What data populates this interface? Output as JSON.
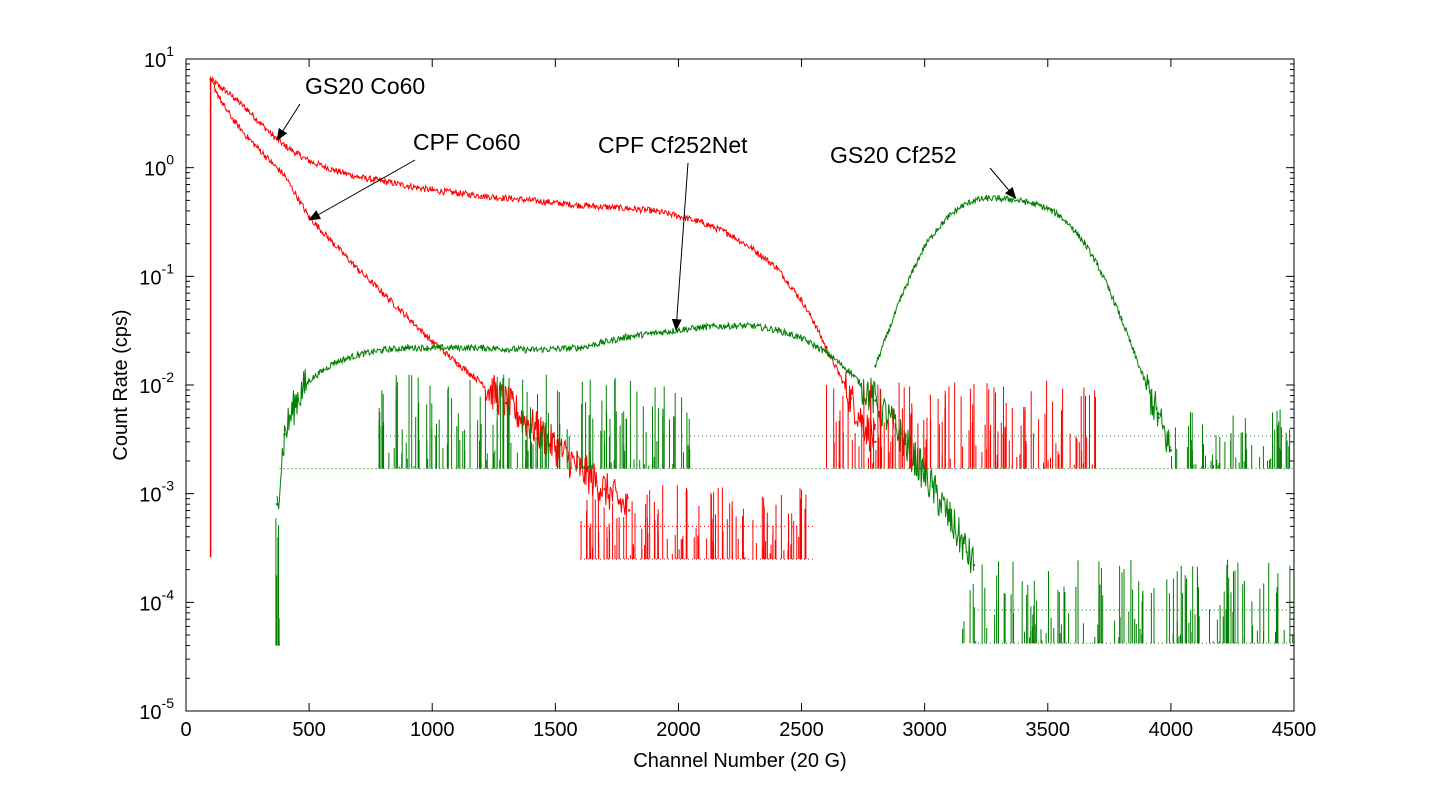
{
  "chart_data": {
    "type": "line",
    "title": "",
    "xlabel": "Channel Number (20 G)",
    "ylabel": "Count Rate (cps)",
    "xlim": [
      0,
      4500
    ],
    "ylim": [
      1e-05,
      10
    ],
    "y_scale": "log",
    "grid": false,
    "legend": "none",
    "x_ticks": [
      "0",
      "500",
      "1000",
      "1500",
      "2000",
      "2500",
      "3000",
      "3500",
      "4000",
      "4500"
    ],
    "y_ticks": [
      {
        "base": "10",
        "exp": "1"
      },
      {
        "base": "10",
        "exp": "0"
      },
      {
        "base": "10",
        "exp": "-1"
      },
      {
        "base": "10",
        "exp": "-2"
      },
      {
        "base": "10",
        "exp": "-3"
      },
      {
        "base": "10",
        "exp": "-4"
      },
      {
        "base": "10",
        "exp": "-5"
      }
    ],
    "series": [
      {
        "name": "GS20 Co60",
        "color": "#ff0000",
        "x": [
          100,
          150,
          200,
          250,
          300,
          350,
          400,
          450,
          500,
          600,
          700,
          800,
          900,
          1000,
          1200,
          1400,
          1600,
          1800,
          1900,
          2000,
          2100,
          2200,
          2300,
          2400,
          2500,
          2550,
          2600,
          2650,
          2700,
          2750,
          2800
        ],
        "y": [
          6.5,
          5.3,
          4.3,
          3.4,
          2.6,
          2.0,
          1.6,
          1.35,
          1.15,
          0.95,
          0.82,
          0.75,
          0.68,
          0.62,
          0.55,
          0.5,
          0.45,
          0.42,
          0.4,
          0.36,
          0.31,
          0.25,
          0.18,
          0.12,
          0.06,
          0.038,
          0.022,
          0.013,
          0.0075,
          0.0045,
          0.003
        ]
      },
      {
        "name": "CPF Co60",
        "color": "#ff0000",
        "x": [
          100,
          150,
          200,
          250,
          300,
          350,
          400,
          500,
          600,
          700,
          800,
          900,
          1000,
          1100,
          1200,
          1300,
          1400,
          1500,
          1600,
          1700,
          1800
        ],
        "y": [
          6.5,
          3.8,
          2.6,
          1.9,
          1.45,
          1.1,
          0.85,
          0.35,
          0.2,
          0.115,
          0.07,
          0.042,
          0.025,
          0.016,
          0.0105,
          0.0068,
          0.0043,
          0.0027,
          0.0017,
          0.0011,
          0.0007
        ]
      },
      {
        "name": "CPF Cf252Net",
        "color": "#008000",
        "x": [
          370,
          400,
          450,
          500,
          600,
          700,
          800,
          900,
          1000,
          1200,
          1400,
          1600,
          1800,
          2000,
          2100,
          2200,
          2300,
          2400,
          2500,
          2600,
          2700,
          2800,
          2900,
          3000,
          3100,
          3200
        ],
        "y": [
          0.0008,
          0.0035,
          0.0075,
          0.011,
          0.016,
          0.019,
          0.021,
          0.022,
          0.022,
          0.022,
          0.021,
          0.022,
          0.028,
          0.032,
          0.034,
          0.035,
          0.035,
          0.032,
          0.027,
          0.02,
          0.013,
          0.0072,
          0.0035,
          0.0015,
          0.0006,
          0.00022
        ]
      },
      {
        "name": "GS20 Cf252",
        "color": "#008000",
        "x": [
          2800,
          2850,
          2900,
          2950,
          3000,
          3050,
          3100,
          3150,
          3200,
          3250,
          3300,
          3350,
          3400,
          3450,
          3500,
          3550,
          3600,
          3650,
          3700,
          3750,
          3800,
          3850,
          3900,
          3950,
          4000
        ],
        "y": [
          0.015,
          0.03,
          0.06,
          0.11,
          0.19,
          0.27,
          0.36,
          0.44,
          0.5,
          0.52,
          0.52,
          0.51,
          0.49,
          0.46,
          0.42,
          0.36,
          0.28,
          0.2,
          0.13,
          0.075,
          0.04,
          0.02,
          0.01,
          0.005,
          0.0025
        ]
      }
    ],
    "annotations": [
      {
        "text": "GS20 Co60",
        "target": [
          370,
          1.8
        ]
      },
      {
        "text": "CPF Co60",
        "target": [
          500,
          0.33
        ]
      },
      {
        "text": "CPF Cf252Net",
        "target": [
          1990,
          0.032
        ]
      },
      {
        "text": "GS20 Cf252",
        "target": [
          3370,
          0.52
        ]
      }
    ]
  }
}
